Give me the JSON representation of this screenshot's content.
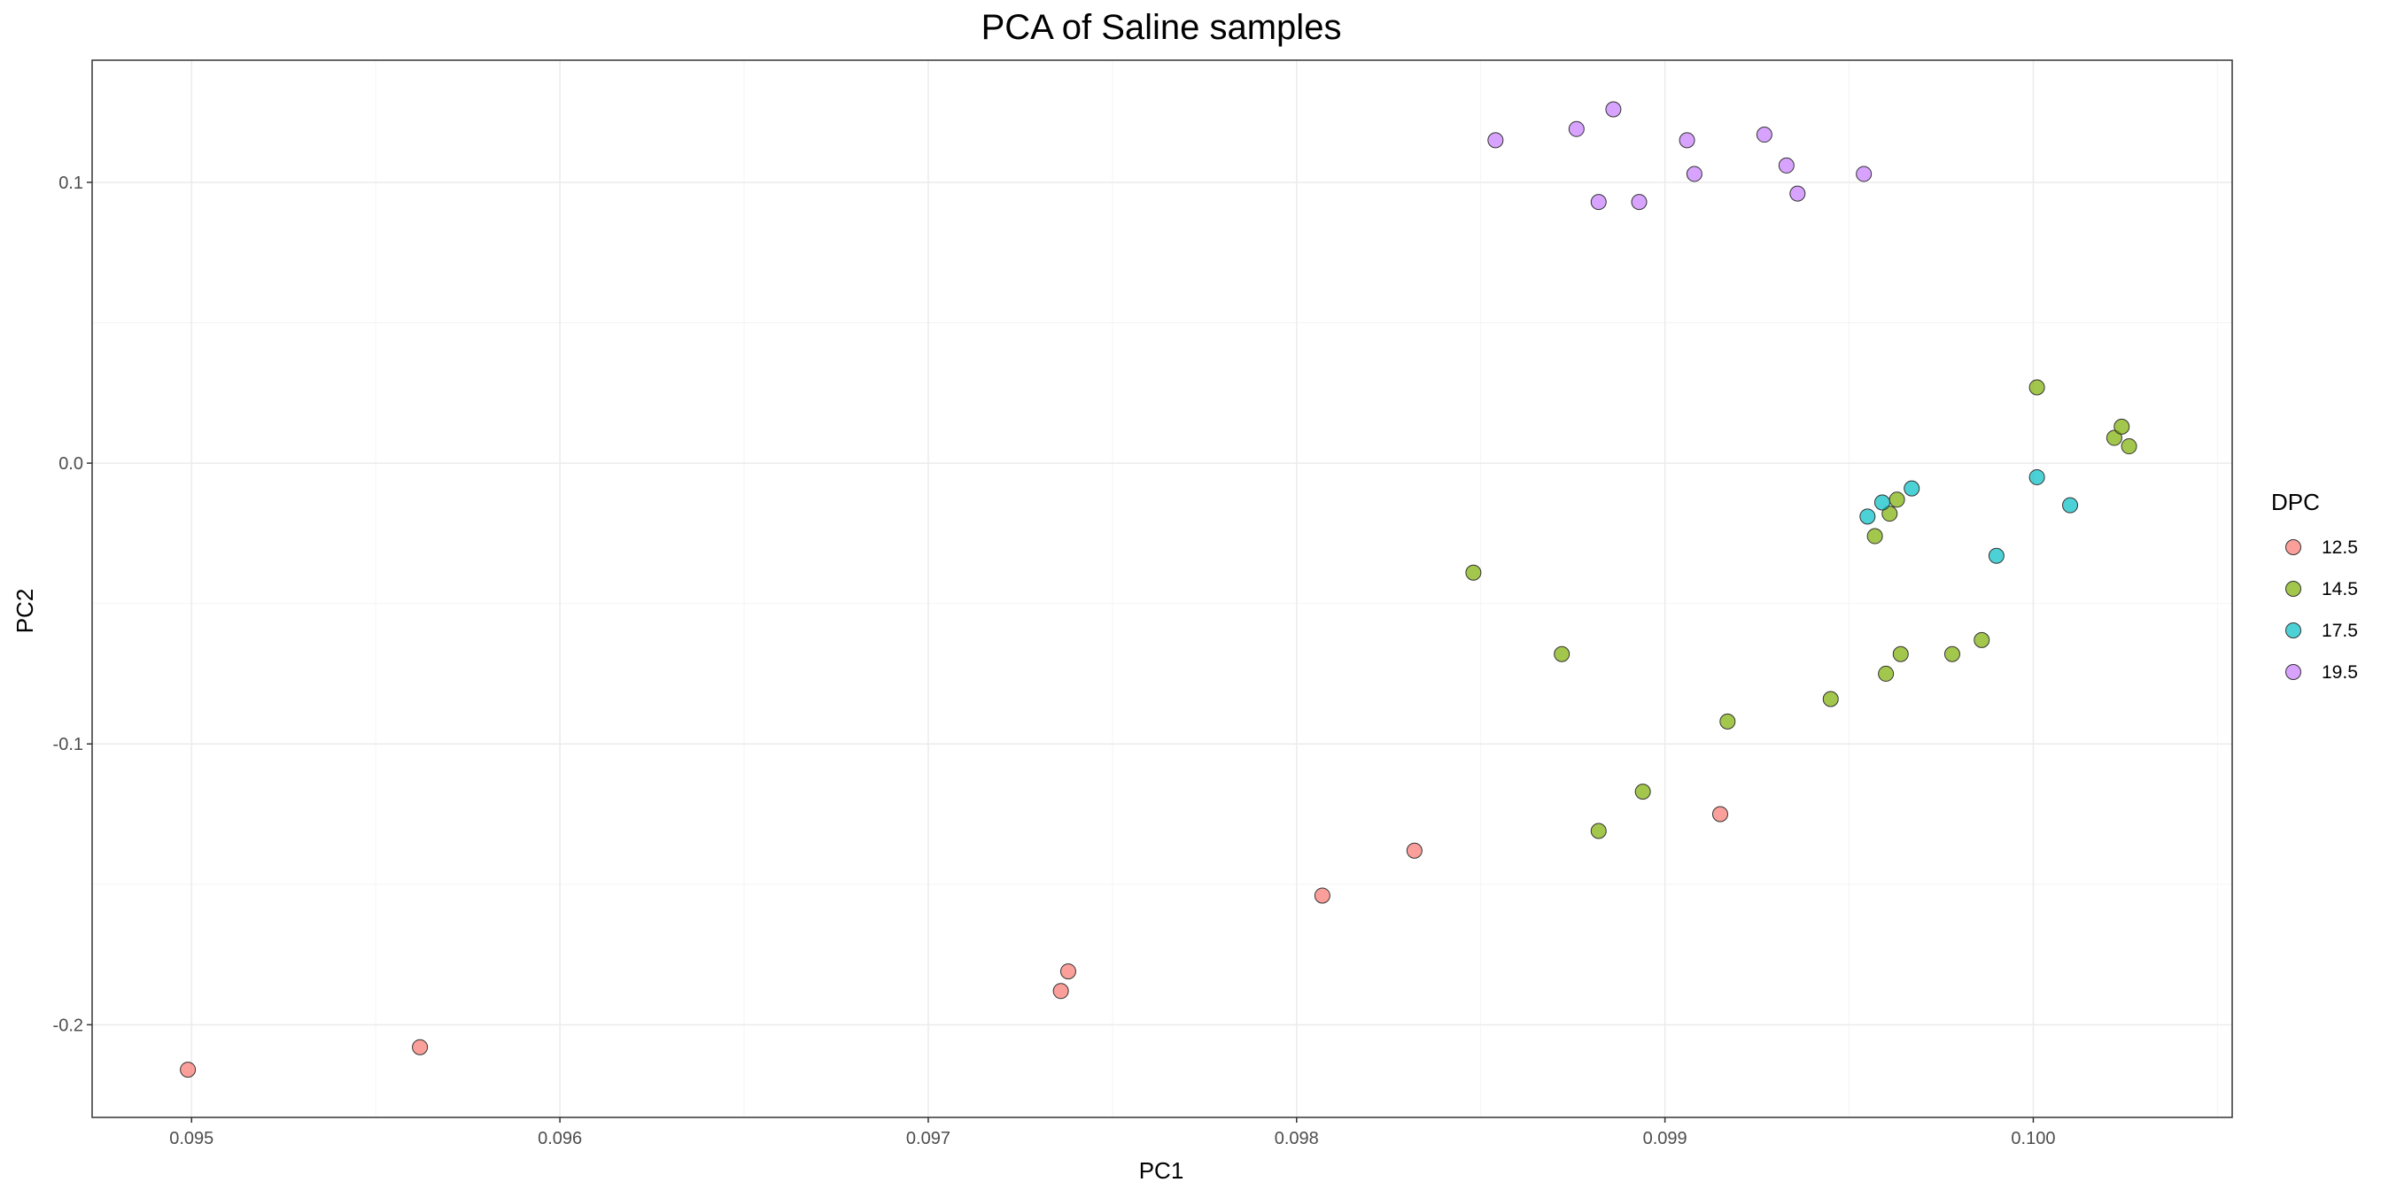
{
  "chart_data": {
    "type": "scatter",
    "title": "PCA of Saline samples",
    "xlabel": "PC1",
    "ylabel": "PC2",
    "xlim": [
      0.09473,
      0.10054
    ],
    "ylim": [
      -0.233,
      0.1435
    ],
    "x_ticks": [
      0.095,
      0.096,
      0.097,
      0.098,
      0.099,
      0.1
    ],
    "x_tick_labels": [
      "0.095",
      "0.096",
      "0.097",
      "0.098",
      "0.099",
      "0.100"
    ],
    "y_ticks": [
      -0.2,
      -0.1,
      0.0,
      0.1
    ],
    "y_tick_labels": [
      "-0.2",
      "-0.1",
      "0.0",
      "0.1"
    ],
    "grid": true,
    "legend": {
      "title": "DPC",
      "position": "right"
    },
    "series": [
      {
        "name": "12.5",
        "color": "#F8766D",
        "points": [
          {
            "x": 0.09499,
            "y": -0.216
          },
          {
            "x": 0.09562,
            "y": -0.208
          },
          {
            "x": 0.09736,
            "y": -0.188
          },
          {
            "x": 0.09738,
            "y": -0.181
          },
          {
            "x": 0.09807,
            "y": -0.154
          },
          {
            "x": 0.09832,
            "y": -0.138
          },
          {
            "x": 0.09915,
            "y": -0.125
          }
        ]
      },
      {
        "name": "14.5",
        "color": "#7CAE00",
        "points": [
          {
            "x": 0.09848,
            "y": -0.039
          },
          {
            "x": 0.09872,
            "y": -0.068
          },
          {
            "x": 0.09882,
            "y": -0.131
          },
          {
            "x": 0.09894,
            "y": -0.117
          },
          {
            "x": 0.09917,
            "y": -0.092
          },
          {
            "x": 0.09945,
            "y": -0.084
          },
          {
            "x": 0.09957,
            "y": -0.026
          },
          {
            "x": 0.0996,
            "y": -0.075
          },
          {
            "x": 0.09961,
            "y": -0.018
          },
          {
            "x": 0.09963,
            "y": -0.013
          },
          {
            "x": 0.09964,
            "y": -0.068
          },
          {
            "x": 0.09978,
            "y": -0.068
          },
          {
            "x": 0.09986,
            "y": -0.063
          },
          {
            "x": 0.10001,
            "y": 0.027
          },
          {
            "x": 0.10022,
            "y": 0.009
          },
          {
            "x": 0.10024,
            "y": 0.013
          },
          {
            "x": 0.10026,
            "y": 0.006
          }
        ]
      },
      {
        "name": "17.5",
        "color": "#00BFC4",
        "points": [
          {
            "x": 0.09955,
            "y": -0.019
          },
          {
            "x": 0.09959,
            "y": -0.014
          },
          {
            "x": 0.09967,
            "y": -0.009
          },
          {
            "x": 0.0999,
            "y": -0.033
          },
          {
            "x": 0.10001,
            "y": -0.005
          },
          {
            "x": 0.1001,
            "y": -0.015
          }
        ]
      },
      {
        "name": "19.5",
        "color": "#C77CFF",
        "points": [
          {
            "x": 0.09854,
            "y": 0.115
          },
          {
            "x": 0.09876,
            "y": 0.119
          },
          {
            "x": 0.09882,
            "y": 0.093
          },
          {
            "x": 0.09886,
            "y": 0.126
          },
          {
            "x": 0.09893,
            "y": 0.093
          },
          {
            "x": 0.09906,
            "y": 0.115
          },
          {
            "x": 0.09908,
            "y": 0.103
          },
          {
            "x": 0.09927,
            "y": 0.117
          },
          {
            "x": 0.09933,
            "y": 0.106
          },
          {
            "x": 0.09936,
            "y": 0.096
          },
          {
            "x": 0.09954,
            "y": 0.103
          }
        ]
      }
    ]
  },
  "style": {
    "grid_major_color": "#EBEBEB",
    "grid_minor_color": "#F4F4F4",
    "panel_border_color": "#333333",
    "point_stroke_color": "#333333"
  }
}
